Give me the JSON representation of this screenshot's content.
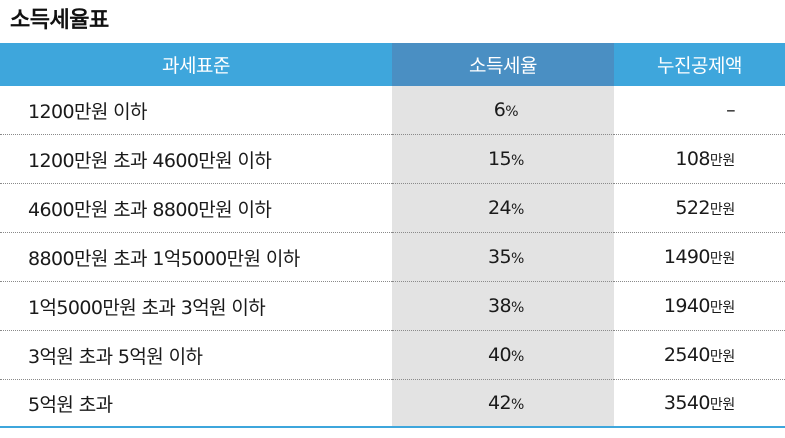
{
  "title": "소득세율표",
  "headers": [
    "과세표준",
    "소득세율",
    "누진공제액"
  ],
  "rows": [
    {
      "bracket": "1200만원 이하",
      "rate": "6",
      "rate_unit": "%",
      "deduction": "–",
      "deduction_unit": ""
    },
    {
      "bracket": "1200만원 초과 4600만원 이하",
      "rate": "15",
      "rate_unit": "%",
      "deduction": "108",
      "deduction_unit": "만원"
    },
    {
      "bracket": "4600만원 초과 8800만원 이하",
      "rate": "24",
      "rate_unit": "%",
      "deduction": "522",
      "deduction_unit": "만원"
    },
    {
      "bracket": "8800만원 초과 1억5000만원 이하",
      "rate": "35",
      "rate_unit": "%",
      "deduction": "1490",
      "deduction_unit": "만원"
    },
    {
      "bracket": "1억5000만원 초과 3억원 이하",
      "rate": "38",
      "rate_unit": "%",
      "deduction": "1940",
      "deduction_unit": "만원"
    },
    {
      "bracket": "3억원 초과 5억원 이하",
      "rate": "40",
      "rate_unit": "%",
      "deduction": "2540",
      "deduction_unit": "만원"
    },
    {
      "bracket": "5억원 초과",
      "rate": "42",
      "rate_unit": "%",
      "deduction": "3540",
      "deduction_unit": "만원"
    }
  ],
  "colors": {
    "header_blue": "#3ea6dc",
    "header_rate_blue": "#4a8fc3",
    "rate_column_bg": "#e3e3e3"
  }
}
